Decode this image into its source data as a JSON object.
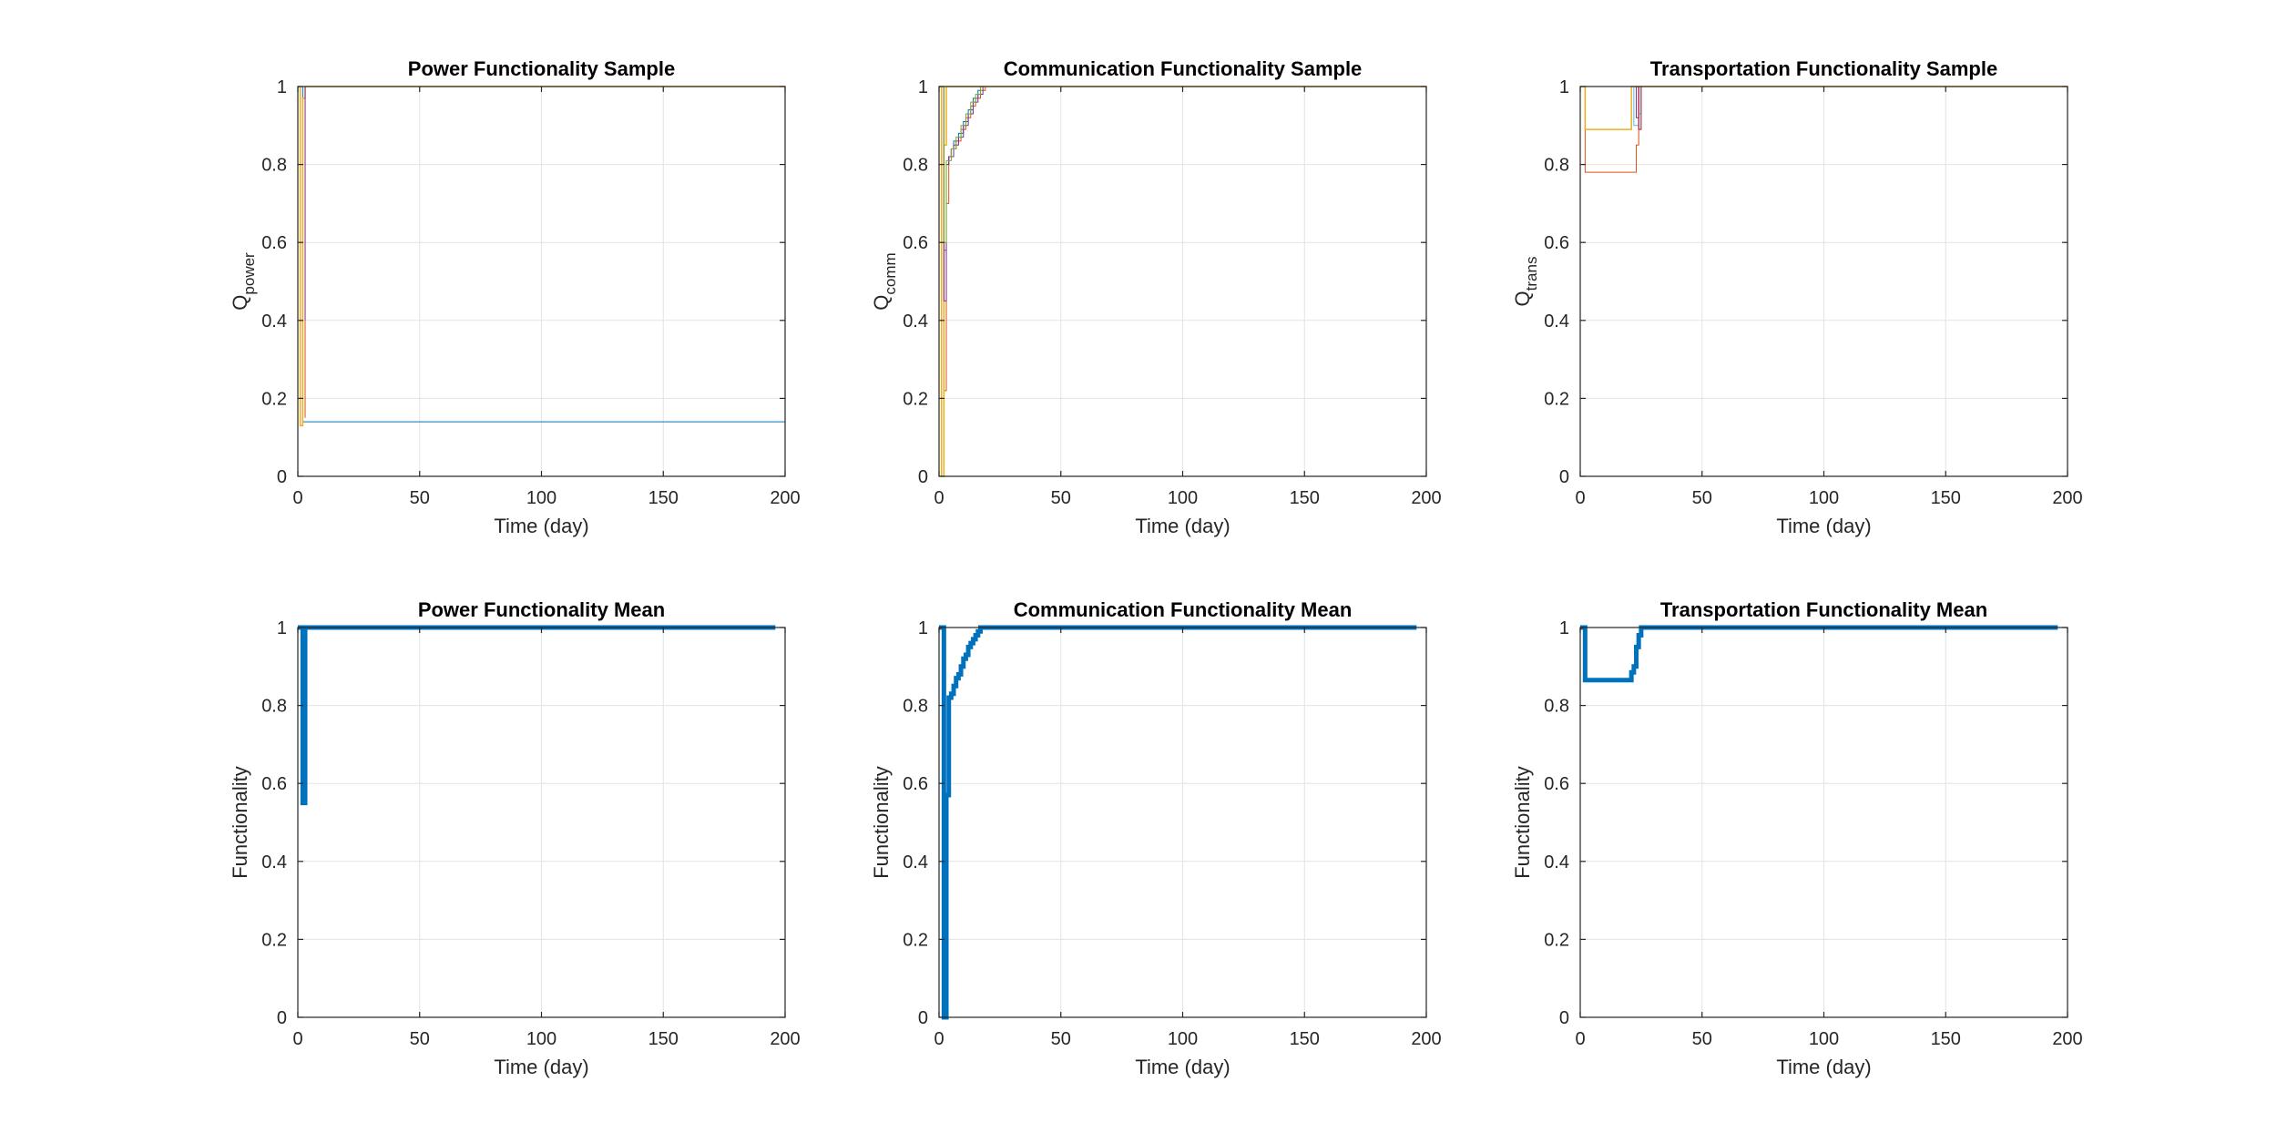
{
  "window": {
    "title": ""
  },
  "chart_data": [
    {
      "type": "line",
      "title": "Power Functionality Sample",
      "xlabel": "Time (day)",
      "ylabel": "Q",
      "ylabel_sub": "power",
      "xlim": [
        0,
        200
      ],
      "ylim": [
        0,
        1
      ],
      "xticks": [
        0,
        50,
        100,
        150,
        200
      ],
      "yticks": [
        0,
        0.2,
        0.4,
        0.6,
        0.8,
        1
      ],
      "grid": true,
      "step": true,
      "series": [
        {
          "color": "#0072BD",
          "width": 1,
          "x": [
            0,
            1,
            2,
            2,
            200
          ],
          "y": [
            1,
            1,
            1,
            0.14,
            1
          ]
        },
        {
          "color": "#D95319",
          "width": 1,
          "x": [
            0,
            2,
            3,
            3,
            200
          ],
          "y": [
            1,
            1,
            0.15,
            1,
            1
          ]
        },
        {
          "color": "#EDB120",
          "width": 1.5,
          "x": [
            0,
            1,
            1,
            2,
            2,
            3,
            3,
            200
          ],
          "y": [
            1,
            1,
            0.13,
            0.13,
            0.97,
            0.97,
            1,
            1
          ]
        },
        {
          "color": "#7E2F8E",
          "width": 1,
          "x": [
            0,
            2,
            3,
            3,
            200
          ],
          "y": [
            1,
            1,
            0.4,
            1,
            1
          ]
        }
      ]
    },
    {
      "type": "line",
      "title": "Communication Functionality Sample",
      "xlabel": "Time (day)",
      "ylabel": "Q",
      "ylabel_sub": "comm",
      "xlim": [
        0,
        200
      ],
      "ylim": [
        0,
        1
      ],
      "xticks": [
        0,
        50,
        100,
        150,
        200
      ],
      "yticks": [
        0,
        0.2,
        0.4,
        0.6,
        0.8,
        1
      ],
      "grid": true,
      "step": true,
      "series": [
        {
          "color": "#0072BD",
          "width": 1,
          "x": [
            0,
            1,
            2,
            3,
            4,
            5,
            6,
            8,
            10,
            12,
            14,
            16,
            17,
            200
          ],
          "y": [
            1,
            0,
            0.58,
            0.8,
            0.82,
            0.84,
            0.86,
            0.88,
            0.91,
            0.94,
            0.97,
            0.99,
            1,
            1
          ]
        },
        {
          "color": "#D95319",
          "width": 1,
          "x": [
            0,
            2,
            3,
            4,
            5,
            7,
            9,
            11,
            13,
            15,
            17,
            19,
            200
          ],
          "y": [
            1,
            0.22,
            0.7,
            0.82,
            0.84,
            0.86,
            0.89,
            0.92,
            0.95,
            0.97,
            0.99,
            1,
            1
          ]
        },
        {
          "color": "#EDB120",
          "width": 1.5,
          "x": [
            0,
            1,
            1,
            2,
            2,
            3,
            3,
            200
          ],
          "y": [
            1,
            1,
            0,
            0,
            0.85,
            0.85,
            1,
            1
          ]
        },
        {
          "color": "#7E2F8E",
          "width": 1,
          "x": [
            0,
            2,
            3,
            4,
            6,
            8,
            10,
            12,
            14,
            16,
            18,
            200
          ],
          "y": [
            1,
            0.45,
            0.8,
            0.82,
            0.85,
            0.87,
            0.9,
            0.93,
            0.96,
            0.98,
            1,
            1
          ]
        },
        {
          "color": "#77AC30",
          "width": 1,
          "x": [
            0,
            2,
            3,
            5,
            7,
            9,
            11,
            13,
            15,
            17,
            200
          ],
          "y": [
            1,
            0.6,
            0.81,
            0.84,
            0.87,
            0.9,
            0.93,
            0.96,
            0.98,
            1,
            1
          ]
        }
      ]
    },
    {
      "type": "line",
      "title": "Transportation Functionality Sample",
      "xlabel": "Time (day)",
      "ylabel": "Q",
      "ylabel_sub": "trans",
      "xlim": [
        0,
        200
      ],
      "ylim": [
        0,
        1
      ],
      "xticks": [
        0,
        50,
        100,
        150,
        200
      ],
      "yticks": [
        0,
        0.2,
        0.4,
        0.6,
        0.8,
        1
      ],
      "grid": true,
      "step": true,
      "series": [
        {
          "color": "#0072BD",
          "width": 1,
          "x": [
            0,
            1,
            20,
            21,
            200
          ],
          "y": [
            1,
            1,
            1,
            1,
            1
          ]
        },
        {
          "color": "#D95319",
          "width": 1,
          "x": [
            0,
            2,
            22,
            23,
            24,
            200
          ],
          "y": [
            1,
            0.78,
            0.78,
            0.85,
            1,
            1
          ]
        },
        {
          "color": "#EDB120",
          "width": 1.5,
          "x": [
            0,
            2,
            21,
            21,
            200
          ],
          "y": [
            1,
            0.89,
            0.89,
            1,
            1
          ]
        },
        {
          "color": "#7E2F8E",
          "width": 1,
          "x": [
            0,
            1,
            23,
            24,
            200
          ],
          "y": [
            1,
            1,
            0.92,
            1,
            1
          ]
        },
        {
          "color": "#4DBEEE",
          "width": 1,
          "x": [
            0,
            1,
            22,
            24,
            25,
            200
          ],
          "y": [
            1,
            1,
            0.9,
            0.93,
            1,
            1
          ]
        },
        {
          "color": "#A2142F",
          "width": 1,
          "x": [
            0,
            1,
            24,
            25,
            200
          ],
          "y": [
            1,
            1,
            0.89,
            1,
            1
          ]
        }
      ]
    },
    {
      "type": "line",
      "title": "Power Functionality Mean",
      "xlabel": "Time (day)",
      "ylabel": "Functionality",
      "xlim": [
        0,
        200
      ],
      "ylim": [
        0,
        1
      ],
      "xticks": [
        0,
        50,
        100,
        150,
        200
      ],
      "yticks": [
        0,
        0.2,
        0.4,
        0.6,
        0.8,
        1
      ],
      "grid": true,
      "step": true,
      "series": [
        {
          "color": "#0072BD",
          "width": 5,
          "x": [
            0,
            1,
            2,
            3,
            4,
            196
          ],
          "y": [
            1,
            1,
            0.55,
            1,
            1,
            1
          ]
        }
      ]
    },
    {
      "type": "line",
      "title": "Communication Functionality Mean",
      "xlabel": "Time (day)",
      "ylabel": "Functionality",
      "xlim": [
        0,
        200
      ],
      "ylim": [
        0,
        1
      ],
      "xticks": [
        0,
        50,
        100,
        150,
        200
      ],
      "yticks": [
        0,
        0.2,
        0.4,
        0.6,
        0.8,
        1
      ],
      "grid": true,
      "step": true,
      "series": [
        {
          "color": "#0072BD",
          "width": 5,
          "x": [
            0,
            1,
            2,
            3,
            4,
            5,
            6,
            7,
            8,
            9,
            10,
            11,
            12,
            13,
            14,
            15,
            16,
            17,
            196
          ],
          "y": [
            1,
            1,
            0,
            0.57,
            0.82,
            0.83,
            0.85,
            0.87,
            0.88,
            0.9,
            0.92,
            0.93,
            0.95,
            0.96,
            0.97,
            0.98,
            0.99,
            1,
            1
          ]
        }
      ]
    },
    {
      "type": "line",
      "title": "Transportation Functionality Mean",
      "xlabel": "Time (day)",
      "ylabel": "Functionality",
      "xlim": [
        0,
        200
      ],
      "ylim": [
        0,
        1
      ],
      "xticks": [
        0,
        50,
        100,
        150,
        200
      ],
      "yticks": [
        0,
        0.2,
        0.4,
        0.6,
        0.8,
        1
      ],
      "grid": true,
      "step": true,
      "series": [
        {
          "color": "#0072BD",
          "width": 5,
          "x": [
            0,
            1,
            2,
            20,
            21,
            22,
            23,
            24,
            25,
            196
          ],
          "y": [
            1,
            1,
            0.865,
            0.865,
            0.885,
            0.9,
            0.95,
            0.98,
            1,
            1
          ]
        }
      ]
    }
  ]
}
